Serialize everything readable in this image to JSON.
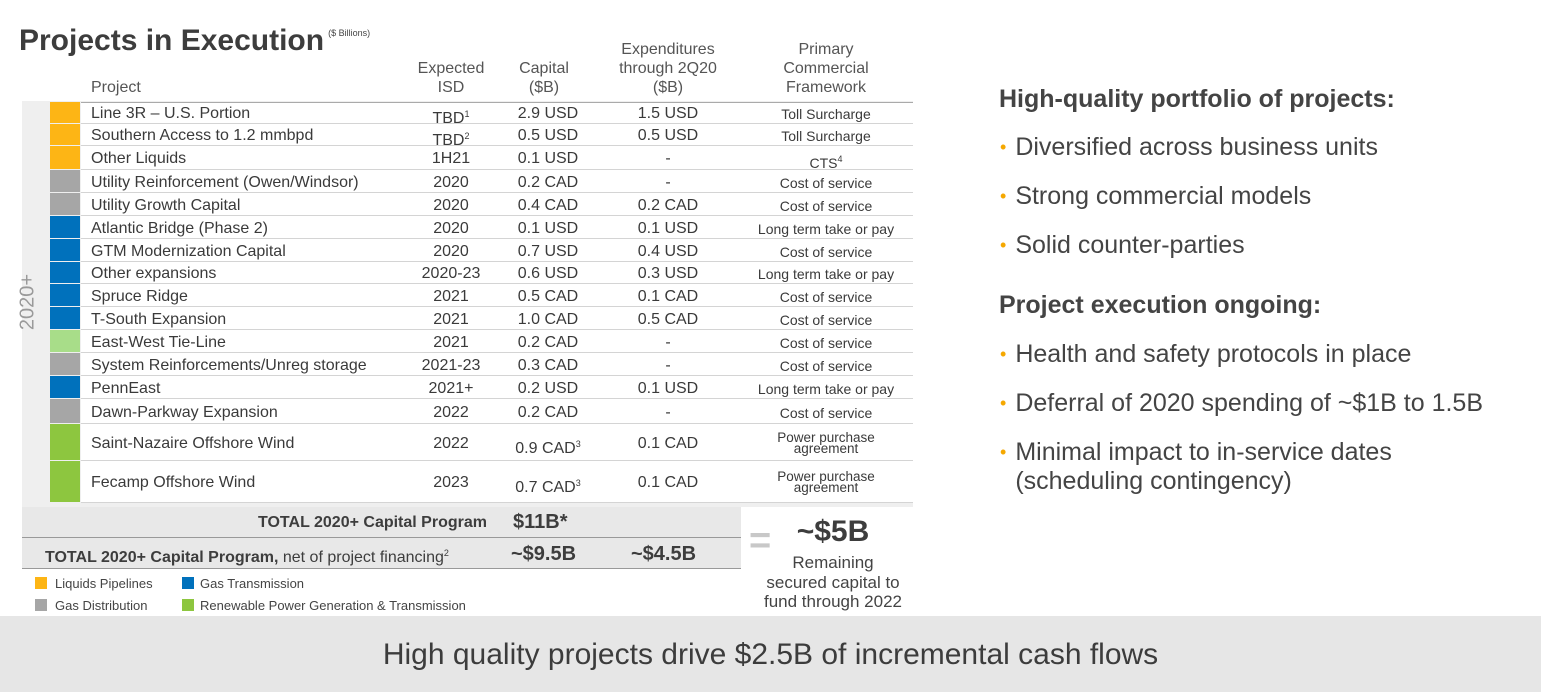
{
  "title": "Projects in Execution",
  "title_sub": "($ Billions)",
  "headers": {
    "project": "Project",
    "isd": [
      "Expected",
      "ISD"
    ],
    "capital": [
      "Capital",
      "($B)"
    ],
    "expenditures": [
      "Expenditures",
      "through 2Q20",
      "($B)"
    ],
    "framework": [
      "Primary",
      "Commercial",
      "Framework"
    ]
  },
  "side_label": "2020+",
  "colors": {
    "liquids": "#FDB515",
    "gas_distribution": "#A6A6A6",
    "gas_transmission": "#0071BC",
    "renewable": "#8DC63F",
    "renewable_light": "#A8DD89",
    "bullet": "#F5A800"
  },
  "rows": [
    {
      "project": "Line 3R – U.S. Portion",
      "isd": "TBD",
      "isd_sup": "1",
      "capital": "2.9 USD",
      "capital_sup": "",
      "exp": "1.5 USD",
      "framework": "Toll Surcharge",
      "framework2": "",
      "seg": "liquids"
    },
    {
      "project": "Southern Access to 1.2 mmbpd",
      "isd": "TBD",
      "isd_sup": "2",
      "capital": "0.5 USD",
      "capital_sup": "",
      "exp": "0.5 USD",
      "framework": "Toll Surcharge",
      "framework2": "",
      "seg": "liquids"
    },
    {
      "project": "Other Liquids",
      "isd": "1H21",
      "isd_sup": "",
      "capital": "0.1 USD",
      "capital_sup": "",
      "exp": "-",
      "framework": "CTS",
      "framework_sup": "4",
      "framework2": "",
      "seg": "liquids"
    },
    {
      "project": "Utility Reinforcement (Owen/Windsor)",
      "isd": "2020",
      "isd_sup": "",
      "capital": "0.2 CAD",
      "capital_sup": "",
      "exp": "-",
      "framework": "Cost of service",
      "framework2": "",
      "seg": "gas_distribution"
    },
    {
      "project": "Utility Growth Capital",
      "isd": "2020",
      "isd_sup": "",
      "capital": "0.4 CAD",
      "capital_sup": "",
      "exp": "0.2 CAD",
      "framework": "Cost of service",
      "framework2": "",
      "seg": "gas_distribution"
    },
    {
      "project": "Atlantic Bridge (Phase 2)",
      "isd": "2020",
      "isd_sup": "",
      "capital": "0.1 USD",
      "capital_sup": "",
      "exp": "0.1 USD",
      "framework": "Long term take or pay",
      "framework2": "",
      "seg": "gas_transmission"
    },
    {
      "project": "GTM Modernization Capital",
      "isd": "2020",
      "isd_sup": "",
      "capital": "0.7 USD",
      "capital_sup": "",
      "exp": "0.4 USD",
      "framework": "Cost of service",
      "framework2": "",
      "seg": "gas_transmission"
    },
    {
      "project": "Other expansions",
      "isd": "2020-23",
      "isd_sup": "",
      "capital": "0.6 USD",
      "capital_sup": "",
      "exp": "0.3 USD",
      "framework": "Long term take or pay",
      "framework2": "",
      "seg": "gas_transmission"
    },
    {
      "project": "Spruce Ridge",
      "isd": "2021",
      "isd_sup": "",
      "capital": "0.5 CAD",
      "capital_sup": "",
      "exp": "0.1 CAD",
      "framework": "Cost of service",
      "framework2": "",
      "seg": "gas_transmission"
    },
    {
      "project": "T-South Expansion",
      "isd": "2021",
      "isd_sup": "",
      "capital": "1.0 CAD",
      "capital_sup": "",
      "exp": "0.5 CAD",
      "framework": "Cost of service",
      "framework2": "",
      "seg": "gas_transmission"
    },
    {
      "project": "East-West Tie-Line",
      "isd": "2021",
      "isd_sup": "",
      "capital": "0.2 CAD",
      "capital_sup": "",
      "exp": "-",
      "framework": "Cost of service",
      "framework2": "",
      "seg": "renewable_light"
    },
    {
      "project": "System Reinforcements/Unreg storage",
      "isd": "2021-23",
      "isd_sup": "",
      "capital": "0.3 CAD",
      "capital_sup": "",
      "exp": "-",
      "framework": "Cost of service",
      "framework2": "",
      "seg": "gas_distribution"
    },
    {
      "project": "PennEast",
      "isd": "2021+",
      "isd_sup": "",
      "capital": "0.2 USD",
      "capital_sup": "",
      "exp": "0.1 USD",
      "framework": "Long term take or pay",
      "framework2": "",
      "seg": "gas_transmission"
    },
    {
      "project": "Dawn-Parkway Expansion",
      "isd": "2022",
      "isd_sup": "",
      "capital": "0.2 CAD",
      "capital_sup": "",
      "exp": "-",
      "framework": "Cost of service",
      "framework2": "",
      "seg": "gas_distribution"
    },
    {
      "project": "Saint-Nazaire Offshore Wind",
      "isd": "2022",
      "isd_sup": "",
      "capital": "0.9 CAD",
      "capital_sup": "3",
      "exp": "0.1 CAD",
      "framework": "Power purchase",
      "framework2": "agreement",
      "seg": "renewable"
    },
    {
      "project": "Fecamp Offshore Wind",
      "isd": "2023",
      "isd_sup": "",
      "capital": "0.7 CAD",
      "capital_sup": "3",
      "exp": "0.1 CAD",
      "framework": "Power purchase",
      "framework2": "agreement",
      "seg": "renewable"
    }
  ],
  "totals": {
    "total1_label": "TOTAL 2020+ Capital Program",
    "total1_value": "$11B*",
    "total2_label": "TOTAL 2020+ Capital Program,",
    "total2_suffix": " net of project financing",
    "total2_sup": "2",
    "total2_capital": "~$9.5B",
    "total2_exp": "~$4.5B"
  },
  "remaining": {
    "equals": "=",
    "value": "~$5B",
    "line1": "Remaining",
    "line2": "secured capital to",
    "line3": "fund through 2022"
  },
  "legend": [
    {
      "label": "Liquids Pipelines",
      "seg": "liquids"
    },
    {
      "label": "Gas Transmission",
      "seg": "gas_transmission"
    },
    {
      "label": "Gas Distribution",
      "seg": "gas_distribution"
    },
    {
      "label": "Renewable Power Generation & Transmission",
      "seg": "renewable"
    }
  ],
  "right": {
    "heading1": "High-quality portfolio of projects:",
    "bullets1": [
      "Diversified across business units",
      "Strong commercial models",
      "Solid counter-parties"
    ],
    "heading2": "Project execution ongoing:",
    "bullets2": [
      "Health and safety protocols in place",
      "Deferral of 2020 spending of ~$1B to 1.5B",
      "Minimal impact to in-service dates",
      "(scheduling contingency)"
    ]
  },
  "footer": "High quality projects drive $2.5B of incremental cash flows"
}
